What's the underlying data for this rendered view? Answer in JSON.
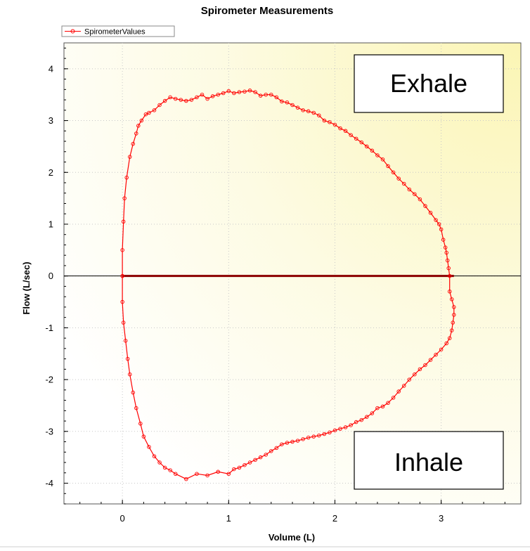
{
  "chart_data": {
    "type": "line",
    "title": "Spirometer Measurements",
    "xlabel": "Volume (L)",
    "ylabel": "Flow (L/sec)",
    "xlim": [
      -0.55,
      3.75
    ],
    "ylim": [
      -4.4,
      4.5
    ],
    "xticks": [
      0,
      1,
      2,
      3
    ],
    "yticks": [
      -4,
      -3,
      -2,
      -1,
      0,
      1,
      2,
      3,
      4
    ],
    "grid": true,
    "legend": "top-left",
    "colors": {
      "series": "#ff0000",
      "zero_line": "#000000",
      "baseline": "#8b0000"
    },
    "annotations": [
      {
        "text": "Exhale",
        "x": 2.92,
        "y": 3.88
      },
      {
        "text": "Inhale",
        "x": 2.92,
        "y": -3.65
      }
    ],
    "series": [
      {
        "name": "SpirometerValues",
        "x": [
          0.0,
          0.0,
          0.01,
          0.02,
          0.04,
          0.07,
          0.1,
          0.13,
          0.15,
          0.18,
          0.22,
          0.25,
          0.3,
          0.35,
          0.4,
          0.45,
          0.5,
          0.55,
          0.6,
          0.65,
          0.7,
          0.75,
          0.8,
          0.85,
          0.9,
          0.95,
          1.0,
          1.05,
          1.1,
          1.15,
          1.2,
          1.25,
          1.3,
          1.35,
          1.4,
          1.45,
          1.5,
          1.55,
          1.6,
          1.65,
          1.7,
          1.75,
          1.8,
          1.85,
          1.9,
          1.95,
          2.0,
          2.05,
          2.1,
          2.15,
          2.2,
          2.25,
          2.3,
          2.35,
          2.4,
          2.45,
          2.5,
          2.55,
          2.6,
          2.65,
          2.7,
          2.75,
          2.8,
          2.85,
          2.9,
          2.95,
          2.98,
          3.0,
          3.02,
          3.04,
          3.05,
          3.06,
          3.07,
          3.08,
          3.08,
          3.1,
          3.12,
          3.12,
          3.11,
          3.1,
          3.08,
          3.05,
          3.0,
          2.95,
          2.9,
          2.85,
          2.8,
          2.75,
          2.7,
          2.65,
          2.6,
          2.55,
          2.5,
          2.45,
          2.4,
          2.35,
          2.3,
          2.25,
          2.2,
          2.15,
          2.1,
          2.05,
          2.0,
          1.95,
          1.9,
          1.85,
          1.8,
          1.75,
          1.7,
          1.65,
          1.6,
          1.55,
          1.5,
          1.45,
          1.4,
          1.35,
          1.3,
          1.25,
          1.2,
          1.15,
          1.1,
          1.05,
          1.0,
          0.9,
          0.8,
          0.7,
          0.6,
          0.5,
          0.45,
          0.4,
          0.35,
          0.3,
          0.25,
          0.2,
          0.17,
          0.13,
          0.1,
          0.07,
          0.05,
          0.03,
          0.01,
          0.0,
          0.0
        ],
        "y": [
          0.0,
          0.5,
          1.05,
          1.5,
          1.9,
          2.3,
          2.55,
          2.75,
          2.9,
          3.0,
          3.12,
          3.15,
          3.2,
          3.3,
          3.38,
          3.45,
          3.42,
          3.4,
          3.38,
          3.4,
          3.45,
          3.5,
          3.42,
          3.47,
          3.5,
          3.53,
          3.57,
          3.53,
          3.55,
          3.56,
          3.58,
          3.55,
          3.48,
          3.5,
          3.5,
          3.45,
          3.37,
          3.35,
          3.3,
          3.25,
          3.2,
          3.18,
          3.15,
          3.1,
          3.0,
          2.97,
          2.92,
          2.85,
          2.8,
          2.72,
          2.65,
          2.58,
          2.5,
          2.42,
          2.33,
          2.25,
          2.12,
          2.0,
          1.88,
          1.78,
          1.67,
          1.58,
          1.48,
          1.35,
          1.22,
          1.08,
          1.0,
          0.9,
          0.7,
          0.55,
          0.45,
          0.3,
          0.15,
          0.0,
          -0.3,
          -0.45,
          -0.6,
          -0.75,
          -0.9,
          -1.05,
          -1.2,
          -1.3,
          -1.42,
          -1.52,
          -1.62,
          -1.72,
          -1.8,
          -1.9,
          -2.0,
          -2.12,
          -2.23,
          -2.35,
          -2.45,
          -2.52,
          -2.55,
          -2.65,
          -2.72,
          -2.78,
          -2.82,
          -2.88,
          -2.92,
          -2.95,
          -2.98,
          -3.02,
          -3.05,
          -3.08,
          -3.1,
          -3.12,
          -3.15,
          -3.18,
          -3.2,
          -3.22,
          -3.25,
          -3.32,
          -3.38,
          -3.45,
          -3.5,
          -3.55,
          -3.6,
          -3.65,
          -3.7,
          -3.73,
          -3.82,
          -3.78,
          -3.85,
          -3.82,
          -3.92,
          -3.82,
          -3.75,
          -3.7,
          -3.6,
          -3.48,
          -3.3,
          -3.1,
          -2.85,
          -2.55,
          -2.25,
          -1.9,
          -1.6,
          -1.25,
          -0.9,
          -0.5,
          0.0
        ]
      }
    ]
  }
}
